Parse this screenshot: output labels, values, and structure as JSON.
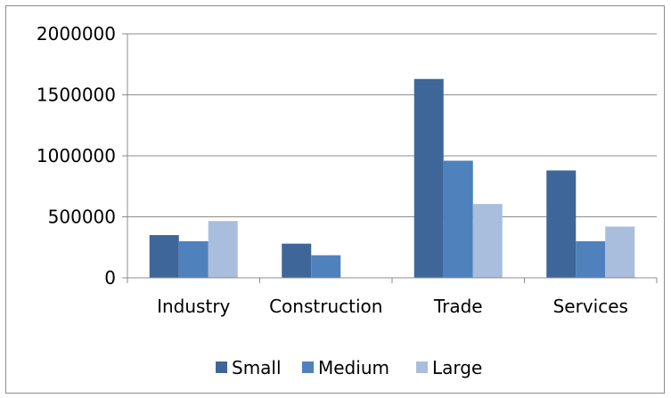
{
  "chart_data": {
    "type": "bar",
    "categories": [
      "Industry",
      "Construction",
      "Trade",
      "Services"
    ],
    "series": [
      {
        "name": "Small",
        "color": "#3f6699",
        "values": [
          350000,
          280000,
          1630000,
          880000
        ]
      },
      {
        "name": "Medium",
        "color": "#4f81bd",
        "values": [
          300000,
          185000,
          960000,
          300000
        ]
      },
      {
        "name": "Large",
        "color": "#a9bddd",
        "values": [
          465000,
          0,
          605000,
          420000
        ]
      }
    ],
    "yticks": [
      "2000000",
      "1500000",
      "1000000",
      "500000",
      "0"
    ],
    "ylim": [
      0,
      2000000
    ],
    "grid": true,
    "legend_position": "bottom"
  }
}
